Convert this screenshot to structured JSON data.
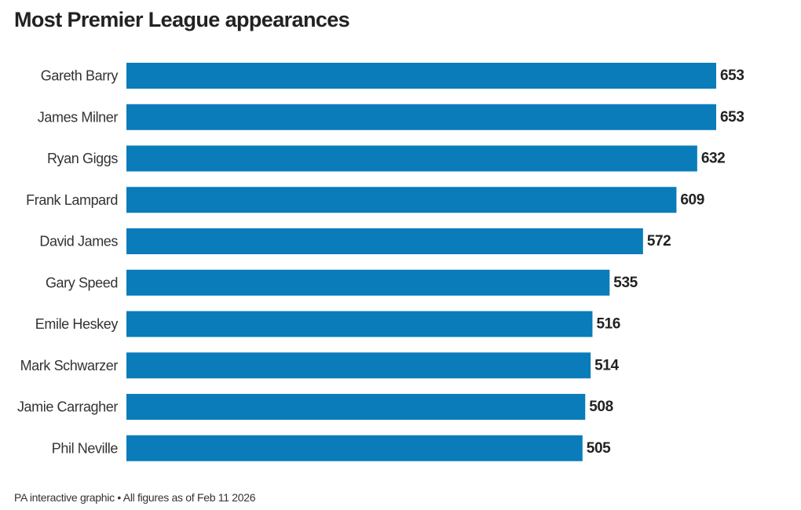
{
  "title": "Most Premier League appearances",
  "footer": "PA interactive graphic • All figures as of Feb 11 2026",
  "colors": {
    "bar": "#0a7cba",
    "text": "#222222"
  },
  "chart_data": {
    "type": "bar",
    "orientation": "horizontal",
    "title": "Most Premier League appearances",
    "xlabel": "",
    "ylabel": "",
    "grid": false,
    "legend": "none",
    "xlim": [
      0,
      653
    ],
    "categories": [
      "Gareth Barry",
      "James Milner",
      "Ryan Giggs",
      "Frank Lampard",
      "David James",
      "Gary Speed",
      "Emile Heskey",
      "Mark Schwarzer",
      "Jamie Carragher",
      "Phil Neville"
    ],
    "values": [
      653,
      653,
      632,
      609,
      572,
      535,
      516,
      514,
      508,
      505
    ]
  }
}
